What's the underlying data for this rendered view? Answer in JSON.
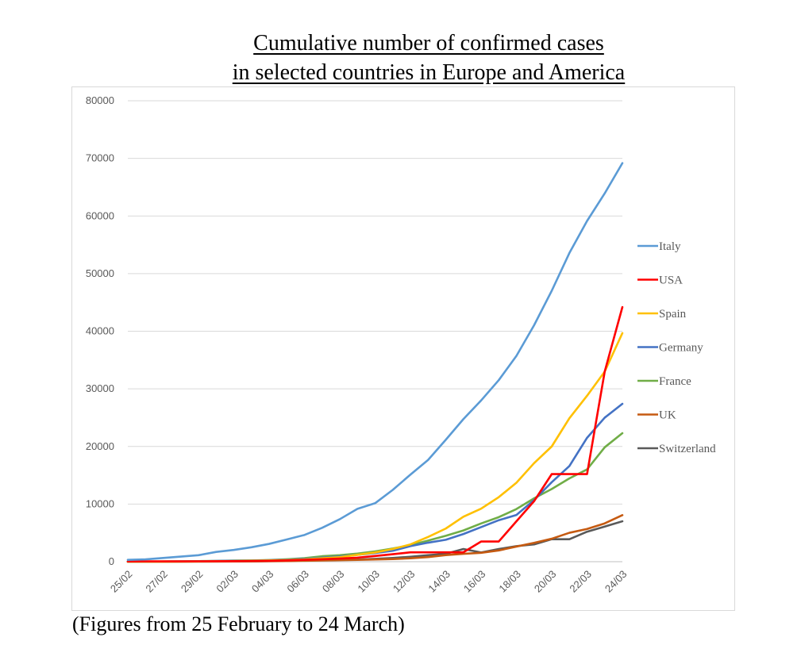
{
  "title_line1": "Cumulative number of confirmed cases",
  "title_line2": "in selected countries in Europe and America",
  "caption": "(Figures from 25 February to 24 March)",
  "chart_data": {
    "type": "line",
    "title": "Cumulative number of confirmed cases in selected countries in Europe and America",
    "xlabel": "",
    "ylabel": "",
    "ylim": [
      0,
      80000
    ],
    "yticks": [
      0,
      10000,
      20000,
      30000,
      40000,
      50000,
      60000,
      70000,
      80000
    ],
    "grid": true,
    "legend_position": "right",
    "x": [
      "25/02",
      "26/02",
      "27/02",
      "28/02",
      "29/02",
      "01/03",
      "02/03",
      "03/03",
      "04/03",
      "05/03",
      "06/03",
      "07/03",
      "08/03",
      "09/03",
      "10/03",
      "11/03",
      "12/03",
      "13/03",
      "14/03",
      "15/03",
      "16/03",
      "17/03",
      "18/03",
      "19/03",
      "20/03",
      "21/03",
      "22/03",
      "23/03",
      "24/03"
    ],
    "xtick_labels": [
      "25/02",
      "27/02",
      "29/02",
      "02/03",
      "04/03",
      "06/03",
      "08/03",
      "10/03",
      "12/03",
      "14/03",
      "16/03",
      "18/03",
      "20/03",
      "22/03",
      "24/03"
    ],
    "series": [
      {
        "name": "Italy",
        "color": "#5b9bd5",
        "values": [
          322,
          400,
          650,
          888,
          1128,
          1694,
          2036,
          2502,
          3089,
          3858,
          4636,
          5883,
          7375,
          9172,
          10149,
          12462,
          15113,
          17660,
          21157,
          24747,
          27980,
          31506,
          35713,
          41035,
          47021,
          53578,
          59138,
          63927,
          69176
        ]
      },
      {
        "name": "USA",
        "color": "#ff0000",
        "values": [
          50,
          55,
          60,
          62,
          68,
          75,
          100,
          120,
          150,
          220,
          320,
          420,
          540,
          704,
          994,
          1300,
          1630,
          1630,
          1630,
          1630,
          3500,
          3500,
          7000,
          10500,
          15200,
          15200,
          15200,
          33000,
          44183
        ]
      },
      {
        "name": "Spain",
        "color": "#ffc000",
        "values": [
          5,
          10,
          15,
          30,
          45,
          75,
          110,
          160,
          220,
          280,
          400,
          590,
          780,
          1200,
          1600,
          2200,
          3000,
          4300,
          5750,
          7800,
          9200,
          11200,
          13700,
          17100,
          20000,
          24900,
          28800,
          33000,
          39673
        ]
      },
      {
        "name": "Germany",
        "color": "#4472c4",
        "values": [
          20,
          25,
          30,
          45,
          60,
          130,
          160,
          200,
          250,
          350,
          500,
          700,
          900,
          1200,
          1500,
          1900,
          2700,
          3300,
          3800,
          4800,
          6000,
          7200,
          8100,
          10700,
          13800,
          16600,
          21500,
          25000,
          27400
        ]
      },
      {
        "name": "France",
        "color": "#70ad47",
        "values": [
          14,
          18,
          38,
          57,
          100,
          130,
          191,
          212,
          285,
          423,
          613,
          949,
          1126,
          1412,
          1784,
          2281,
          2876,
          3661,
          4499,
          5423,
          6633,
          7730,
          9134,
          10995,
          12612,
          14459,
          16018,
          19856,
          22304
        ]
      },
      {
        "name": "UK",
        "color": "#c55a11",
        "values": [
          13,
          13,
          15,
          20,
          23,
          36,
          40,
          51,
          85,
          115,
          163,
          206,
          273,
          321,
          382,
          456,
          590,
          798,
          1140,
          1372,
          1543,
          1950,
          2626,
          3269,
          3983,
          5018,
          5683,
          6650,
          8077
        ]
      },
      {
        "name": "Switzerland",
        "color": "#595959",
        "values": [
          1,
          1,
          8,
          8,
          18,
          27,
          42,
          56,
          90,
          114,
          214,
          268,
          337,
          374,
          491,
          645,
          858,
          1125,
          1359,
          2200,
          1600,
          2200,
          2700,
          3000,
          3900,
          3900,
          5200,
          6100,
          7014
        ]
      }
    ]
  }
}
